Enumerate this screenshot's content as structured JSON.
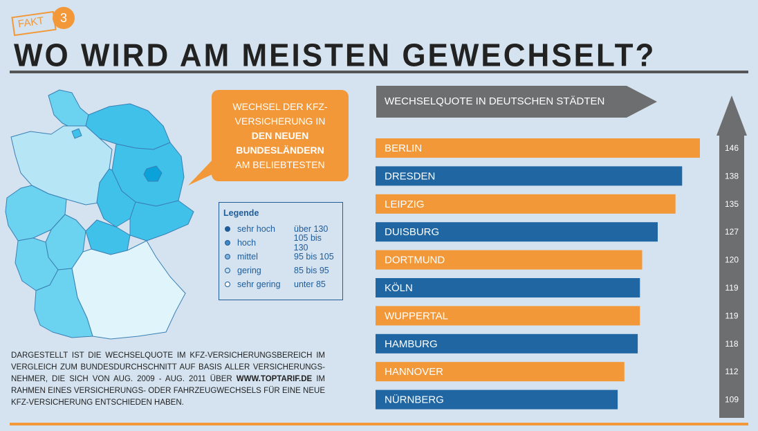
{
  "badge": {
    "label": "FAKT",
    "number": "3"
  },
  "title": "WO WIRD AM MEISTEN GEWECHSELT?",
  "bubble": {
    "line1": "WECHSEL DER KFZ-",
    "line2": "VERSICHERUNG IN",
    "bold1": "DEN NEUEN",
    "bold2": "BUNDESLÄNDERN",
    "line3": "AM BELIEBTESTEN"
  },
  "legend": {
    "title": "Legende",
    "items": [
      {
        "name": "sehr hoch",
        "range": "über 130"
      },
      {
        "name": "hoch",
        "range": "105 bis 130"
      },
      {
        "name": "mittel",
        "range": "95 bis 105"
      },
      {
        "name": "gering",
        "range": "85 bis 95"
      },
      {
        "name": "sehr gering",
        "range": "unter 85"
      }
    ]
  },
  "description": {
    "part1": "Dargestellt ist die Wechselquote im KFZ-Versicherungsbereich im Vergleich zum Bundesdurchschnitt auf Basis aller Versicherungs-nehmer, die sich von Aug. 2009 - Aug. 2011 über ",
    "link": "www.toptarif.de",
    "part2": " im Rahmen eines Versicherungs- oder Fahrzeugwechsels für eine neue KFZ-Versicherung entschieden haben."
  },
  "colors": {
    "orange": "#f29838",
    "blue": "#1f66a3",
    "gray": "#6d6e70",
    "background": "#d4e3ef"
  },
  "chart_data": {
    "type": "bar",
    "orientation": "horizontal",
    "title": "WECHSELQUOTE IN DEUTSCHEN STÄDTEN",
    "categories": [
      "BERLIN",
      "DRESDEN",
      "LEIPZIG",
      "DUISBURG",
      "DORTMUND",
      "KÖLN",
      "WUPPERTAL",
      "HAMBURG",
      "HANNOVER",
      "NÜRNBERG"
    ],
    "values": [
      146,
      138,
      135,
      127,
      120,
      119,
      119,
      118,
      112,
      109
    ],
    "bar_colors": [
      "orange",
      "blue",
      "orange",
      "blue",
      "orange",
      "blue",
      "orange",
      "blue",
      "orange",
      "blue"
    ],
    "xlim": [
      0,
      150
    ]
  }
}
